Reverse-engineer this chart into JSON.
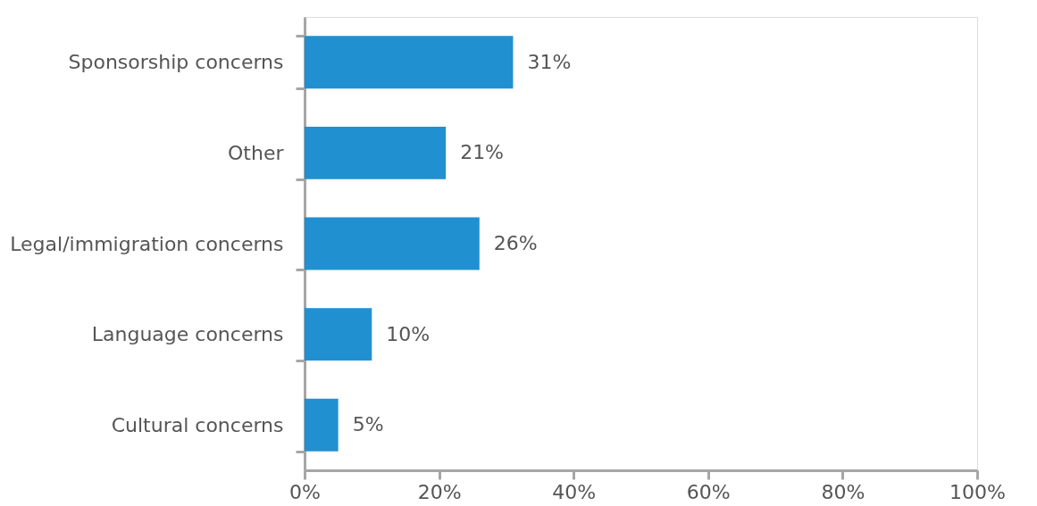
{
  "chart_data": {
    "type": "bar",
    "orientation": "horizontal",
    "categories": [
      "Sponsorship concerns",
      "Other",
      "Legal/immigration concerns",
      "Language concerns",
      "Cultural concerns"
    ],
    "values": [
      31,
      21,
      26,
      10,
      5
    ],
    "value_labels": [
      "31%",
      "21%",
      "26%",
      "10%",
      "5%"
    ],
    "color": "#2190d0",
    "xlim": [
      0,
      100
    ],
    "xticks": [
      {
        "value": 0,
        "label": "0%"
      },
      {
        "value": 20,
        "label": "20%"
      },
      {
        "value": 40,
        "label": "40%"
      },
      {
        "value": 60,
        "label": "60%"
      },
      {
        "value": 80,
        "label": "80%"
      },
      {
        "value": 100,
        "label": "100%"
      }
    ],
    "grid": false
  }
}
